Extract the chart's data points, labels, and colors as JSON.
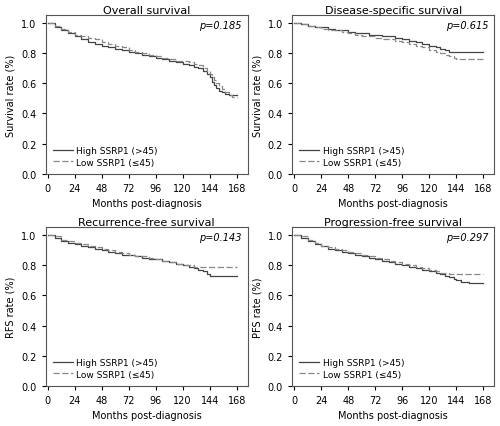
{
  "panels": [
    {
      "title": "Overall survival",
      "ylabel": "Survival rate (%)",
      "pvalue": "p=0.185",
      "ylim": [
        0.0,
        1.05
      ],
      "yticks": [
        0.0,
        0.2,
        0.4,
        0.6,
        0.8,
        1.0
      ],
      "high": {
        "x": [
          0,
          6,
          12,
          18,
          24,
          30,
          36,
          42,
          48,
          54,
          60,
          66,
          72,
          78,
          84,
          90,
          96,
          102,
          108,
          114,
          120,
          126,
          130,
          134,
          138,
          142,
          144,
          146,
          148,
          150,
          152,
          155,
          158,
          161,
          164,
          168
        ],
        "y": [
          1.0,
          0.97,
          0.95,
          0.93,
          0.91,
          0.89,
          0.87,
          0.86,
          0.85,
          0.84,
          0.83,
          0.82,
          0.81,
          0.8,
          0.79,
          0.78,
          0.77,
          0.76,
          0.75,
          0.74,
          0.73,
          0.72,
          0.71,
          0.7,
          0.68,
          0.66,
          0.64,
          0.61,
          0.59,
          0.57,
          0.55,
          0.54,
          0.53,
          0.52,
          0.52,
          0.52
        ]
      },
      "low": {
        "x": [
          0,
          6,
          12,
          18,
          24,
          30,
          36,
          42,
          48,
          54,
          60,
          66,
          72,
          78,
          84,
          90,
          96,
          102,
          108,
          114,
          120,
          126,
          130,
          134,
          138,
          142,
          144,
          146,
          148,
          150,
          152,
          155,
          158,
          161,
          164,
          168
        ],
        "y": [
          1.0,
          0.98,
          0.96,
          0.94,
          0.92,
          0.91,
          0.9,
          0.89,
          0.87,
          0.86,
          0.85,
          0.84,
          0.82,
          0.81,
          0.8,
          0.79,
          0.78,
          0.77,
          0.76,
          0.75,
          0.75,
          0.74,
          0.73,
          0.72,
          0.7,
          0.68,
          0.66,
          0.64,
          0.62,
          0.6,
          0.58,
          0.56,
          0.54,
          0.52,
          0.51,
          0.51
        ]
      }
    },
    {
      "title": "Disease-specific survival",
      "ylabel": "Survival rate (%)",
      "pvalue": "p=0.615",
      "ylim": [
        0.0,
        1.05
      ],
      "yticks": [
        0.0,
        0.2,
        0.4,
        0.6,
        0.8,
        1.0
      ],
      "high": {
        "x": [
          0,
          6,
          12,
          18,
          24,
          30,
          36,
          42,
          48,
          54,
          60,
          66,
          72,
          78,
          84,
          90,
          96,
          102,
          108,
          114,
          120,
          126,
          130,
          134,
          138,
          142,
          144,
          148,
          155,
          160,
          165,
          168
        ],
        "y": [
          1.0,
          0.99,
          0.98,
          0.97,
          0.97,
          0.96,
          0.95,
          0.95,
          0.94,
          0.93,
          0.93,
          0.92,
          0.92,
          0.91,
          0.91,
          0.9,
          0.89,
          0.88,
          0.87,
          0.86,
          0.85,
          0.84,
          0.83,
          0.82,
          0.81,
          0.81,
          0.81,
          0.81,
          0.81,
          0.81,
          0.81,
          0.81
        ]
      },
      "low": {
        "x": [
          0,
          6,
          12,
          18,
          24,
          30,
          36,
          42,
          48,
          54,
          60,
          66,
          72,
          78,
          84,
          90,
          96,
          102,
          108,
          114,
          120,
          126,
          130,
          134,
          138,
          142,
          144,
          148,
          155,
          160,
          165,
          168
        ],
        "y": [
          1.0,
          0.99,
          0.98,
          0.97,
          0.96,
          0.95,
          0.95,
          0.94,
          0.93,
          0.92,
          0.91,
          0.91,
          0.9,
          0.89,
          0.89,
          0.88,
          0.87,
          0.86,
          0.85,
          0.84,
          0.82,
          0.81,
          0.8,
          0.79,
          0.78,
          0.77,
          0.76,
          0.76,
          0.76,
          0.76,
          0.76,
          0.76
        ]
      }
    },
    {
      "title": "Recurrence-free survival",
      "ylabel": "RFS rate (%)",
      "pvalue": "p=0.143",
      "ylim": [
        0.0,
        1.05
      ],
      "yticks": [
        0.0,
        0.2,
        0.4,
        0.6,
        0.8,
        1.0
      ],
      "high": {
        "x": [
          0,
          6,
          12,
          18,
          24,
          30,
          36,
          42,
          48,
          54,
          60,
          66,
          72,
          78,
          84,
          90,
          96,
          102,
          108,
          114,
          120,
          126,
          130,
          134,
          138,
          142,
          144,
          148,
          155,
          160,
          165,
          168
        ],
        "y": [
          1.0,
          0.98,
          0.96,
          0.95,
          0.94,
          0.93,
          0.92,
          0.91,
          0.9,
          0.89,
          0.88,
          0.87,
          0.87,
          0.86,
          0.85,
          0.84,
          0.84,
          0.83,
          0.82,
          0.81,
          0.8,
          0.79,
          0.78,
          0.77,
          0.76,
          0.74,
          0.73,
          0.73,
          0.73,
          0.73,
          0.73,
          0.73
        ]
      },
      "low": {
        "x": [
          0,
          6,
          12,
          18,
          24,
          30,
          36,
          42,
          48,
          54,
          60,
          66,
          72,
          78,
          84,
          90,
          96,
          102,
          108,
          114,
          120,
          126,
          130,
          134,
          138,
          142,
          144,
          148,
          155,
          160,
          165,
          168
        ],
        "y": [
          1.0,
          0.99,
          0.97,
          0.96,
          0.95,
          0.94,
          0.93,
          0.92,
          0.91,
          0.9,
          0.89,
          0.88,
          0.87,
          0.86,
          0.86,
          0.85,
          0.84,
          0.83,
          0.82,
          0.81,
          0.8,
          0.8,
          0.79,
          0.79,
          0.79,
          0.79,
          0.79,
          0.79,
          0.79,
          0.79,
          0.79,
          0.79
        ]
      }
    },
    {
      "title": "Progression-free survival",
      "ylabel": "PFS rate (%)",
      "pvalue": "p=0.297",
      "ylim": [
        0.0,
        1.05
      ],
      "yticks": [
        0.0,
        0.2,
        0.4,
        0.6,
        0.8,
        1.0
      ],
      "high": {
        "x": [
          0,
          6,
          12,
          18,
          24,
          30,
          36,
          42,
          48,
          54,
          60,
          66,
          72,
          78,
          84,
          90,
          96,
          102,
          108,
          114,
          120,
          126,
          130,
          134,
          138,
          142,
          144,
          148,
          155,
          160,
          165,
          168
        ],
        "y": [
          1.0,
          0.98,
          0.96,
          0.94,
          0.93,
          0.91,
          0.9,
          0.89,
          0.88,
          0.87,
          0.86,
          0.85,
          0.84,
          0.83,
          0.82,
          0.81,
          0.8,
          0.79,
          0.78,
          0.77,
          0.76,
          0.75,
          0.74,
          0.73,
          0.72,
          0.71,
          0.7,
          0.69,
          0.68,
          0.68,
          0.68,
          0.68
        ]
      },
      "low": {
        "x": [
          0,
          6,
          12,
          18,
          24,
          30,
          36,
          42,
          48,
          54,
          60,
          66,
          72,
          78,
          84,
          90,
          96,
          102,
          108,
          114,
          120,
          126,
          130,
          134,
          138,
          142,
          144,
          148,
          155,
          160,
          165,
          168
        ],
        "y": [
          1.0,
          0.99,
          0.97,
          0.95,
          0.93,
          0.92,
          0.91,
          0.9,
          0.89,
          0.88,
          0.87,
          0.86,
          0.85,
          0.84,
          0.83,
          0.82,
          0.81,
          0.8,
          0.79,
          0.78,
          0.77,
          0.76,
          0.75,
          0.75,
          0.74,
          0.74,
          0.74,
          0.74,
          0.74,
          0.74,
          0.74,
          0.74
        ]
      }
    }
  ],
  "xticks": [
    0,
    24,
    48,
    72,
    96,
    120,
    144,
    168
  ],
  "xlabel": "Months post-diagnosis",
  "high_color": "#444444",
  "low_color": "#888888",
  "high_label": "High SSRP1 (>45)",
  "low_label": "Low SSRP1 (≤45)",
  "bg_color": "#ffffff",
  "fontsize": 7,
  "title_fontsize": 8
}
